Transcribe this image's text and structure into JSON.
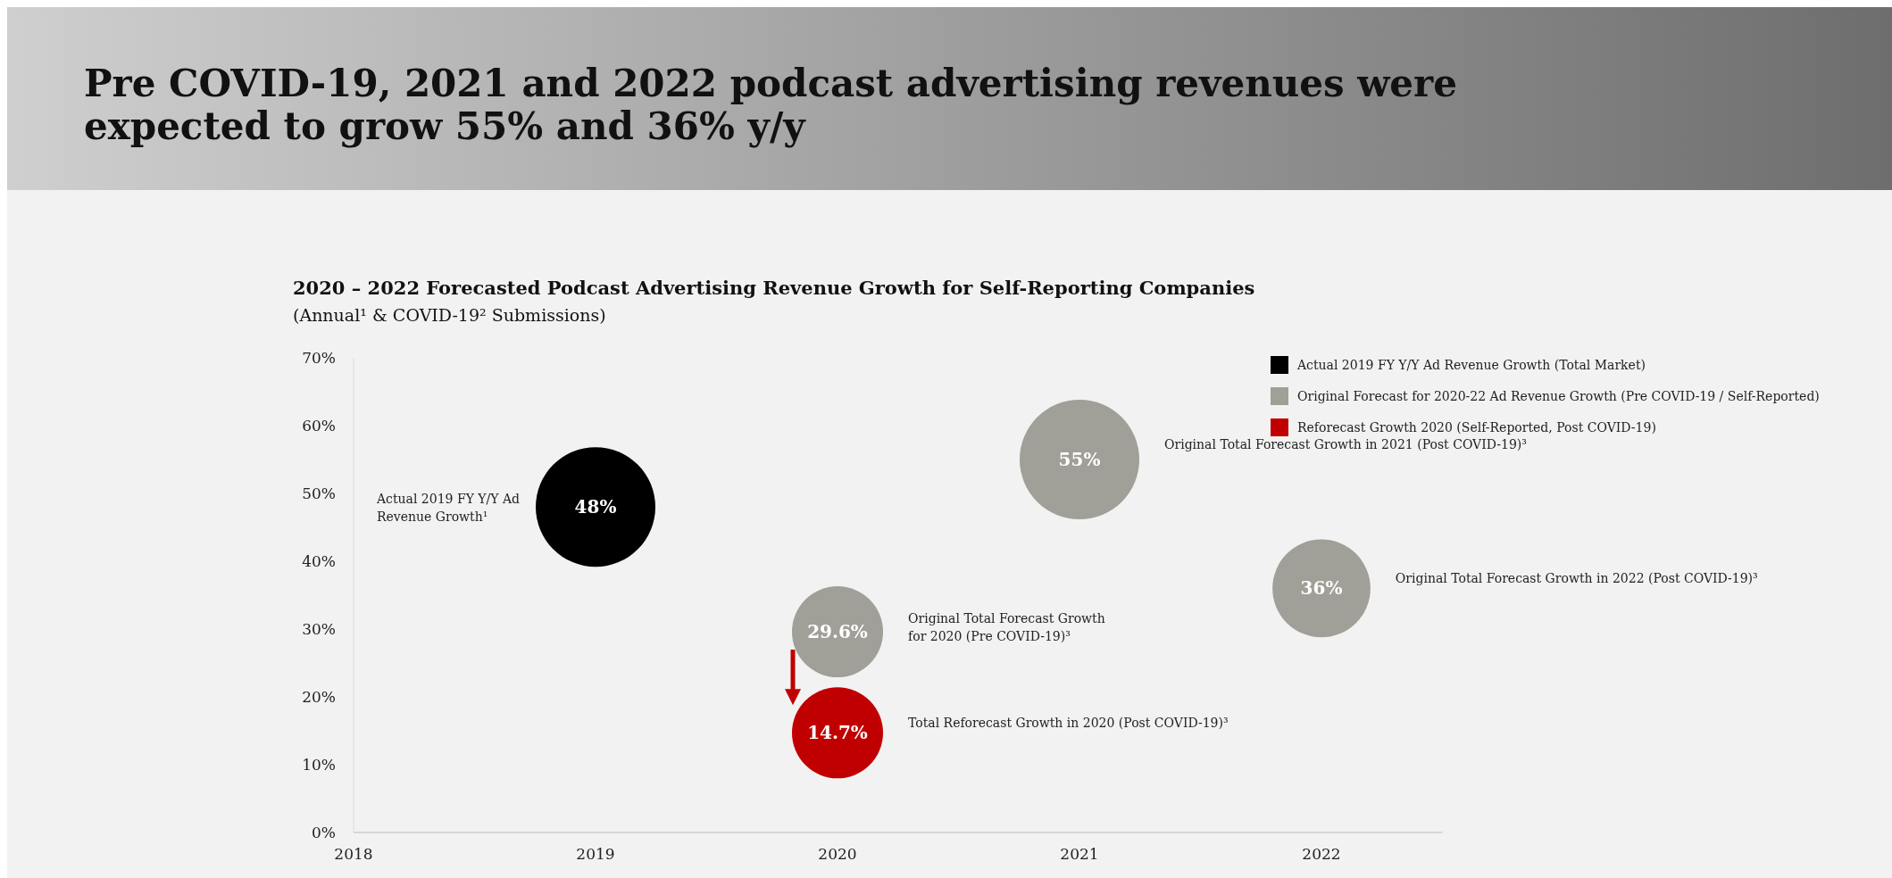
{
  "chart_data": {
    "type": "bubble",
    "title": "Pre COVID-19, 2021 and 2022 podcast advertising revenues were\nexpected to grow 55% and 36% y/y",
    "subtitle": "2020 – 2022 Forecasted Podcast Advertising Revenue Growth for Self-Reporting Companies",
    "xlim": [
      2018,
      2022.5
    ],
    "xticks": [
      2018,
      2019,
      2020,
      2021,
      2022
    ],
    "ylim": [
      0,
      70
    ],
    "yticks": [
      {
        "value": 0,
        "label": "0%"
      },
      {
        "value": 10,
        "label": "10%"
      },
      {
        "value": 20,
        "label": "20%"
      },
      {
        "value": 30,
        "label": "30%"
      },
      {
        "value": 40,
        "label": "40%"
      },
      {
        "value": 50,
        "label": "50%"
      },
      {
        "value": 60,
        "label": "60%"
      },
      {
        "value": 70,
        "label": "70%"
      }
    ],
    "legend": "top right",
    "series": [
      {
        "name": "Actual 2019 FY Y/Y Ad Revenue Growth (Total Market)",
        "color": "#000000",
        "x": [
          2019
        ],
        "values": [
          48
        ],
        "sizes": [
          1
        ],
        "value_labels": [
          "48%"
        ]
      },
      {
        "name": "Original Forecast for 2020-22 Ad Revenue Growth (Pre COVID-19 / Self-Reported)",
        "color": "#a09f98",
        "x": [
          2020,
          2021,
          2022
        ],
        "values": [
          29.6,
          55,
          36
        ],
        "sizes": [
          0.58,
          1,
          0.67
        ],
        "value_labels": [
          "29.6%",
          "55%",
          "36%"
        ]
      },
      {
        "name": "Reforecast Growth 2020 (Self-Reported, Post COVID-19)",
        "color": "#c00000",
        "x": [
          2020
        ],
        "values": [
          14.7
        ],
        "sizes": [
          0.58
        ],
        "value_labels": [
          "14.7%"
        ]
      }
    ],
    "annotations": [
      "(Annual¹ & COVID-19² Submissions)",
      "Actual 2019 FY Y/Y Ad\nRevenue Growth¹",
      "Original Total Forecast Growth\nfor  2020 (Pre COVID-19)³",
      "Total Reforecast Growth in 2020 (Post COVID-19)³",
      "Original Total Forecast Growth in 2021 (Post COVID-19)³",
      "Original Total Forecast Growth in 2022 (Post COVID-19)³"
    ]
  }
}
